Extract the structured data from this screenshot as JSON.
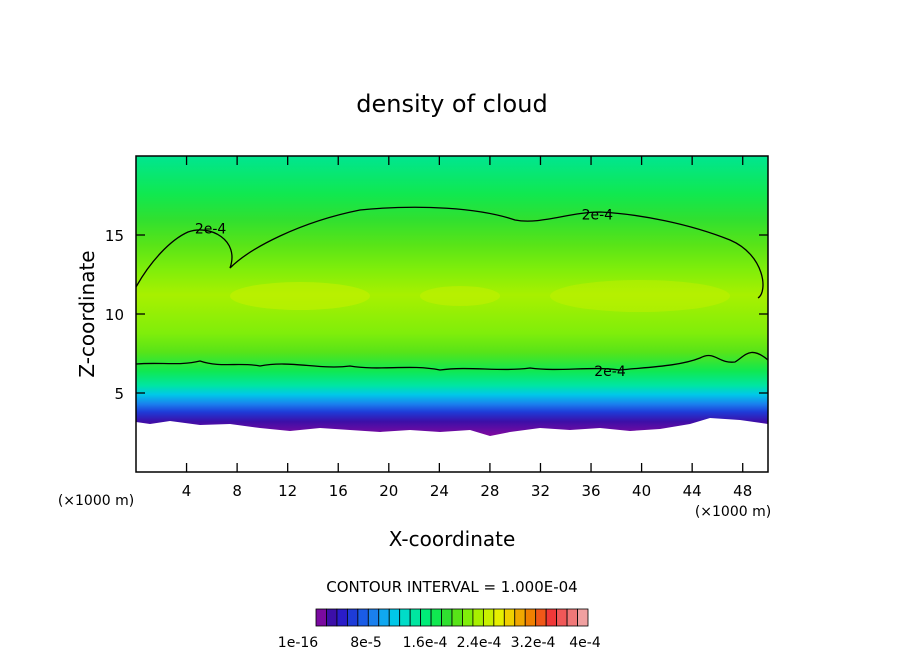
{
  "chart_data": {
    "type": "heatmap",
    "title": "density of cloud",
    "xlabel": "X-coordinate",
    "ylabel": "Z-coordinate",
    "x_unit_label": "(×1000 m)",
    "y_unit_label": "(×1000 m)",
    "xlim": [
      0,
      50
    ],
    "ylim": [
      0,
      20
    ],
    "x_ticks": [
      4,
      8,
      12,
      16,
      20,
      24,
      28,
      32,
      36,
      40,
      44,
      48
    ],
    "y_ticks": [
      5,
      10,
      15
    ],
    "contour_interval_text": "CONTOUR INTERVAL = 1.000E-04",
    "contour_label": "2e-4",
    "contour_label_positions": [
      [
        5.9,
        15.4
      ],
      [
        36.5,
        16.3
      ],
      [
        37.5,
        6.4
      ]
    ],
    "colorbar": {
      "labels": [
        "1e-16",
        "8e-5",
        "1.6e-4",
        "2.4e-4",
        "3.2e-4",
        "4e-4"
      ],
      "colors": [
        "#7a0aa0",
        "#3c0fa8",
        "#2a1cc8",
        "#1e3cd8",
        "#1a5ce6",
        "#1a80ee",
        "#10a8f0",
        "#00c8e8",
        "#00dcc8",
        "#00e6a0",
        "#00ec78",
        "#10e850",
        "#30e030",
        "#58e418",
        "#80ee0a",
        "#a8f000",
        "#c8f000",
        "#e6f000",
        "#f0d000",
        "#f0a800",
        "#f08000",
        "#f05818",
        "#f03838",
        "#f05858",
        "#f07878",
        "#f0a0a0"
      ]
    },
    "density_profile": {
      "z": [
        2.3,
        3.4,
        4.0,
        4.5,
        5.0,
        5.5,
        6.0,
        7.0,
        8.0,
        9.0,
        10.5,
        12.0,
        14.0,
        16.0,
        18.0,
        20.0
      ],
      "value": [
        1e-05,
        4e-05,
        8e-05,
        0.00012,
        0.00015,
        0.00018,
        0.0002,
        0.00022,
        0.000235,
        0.00025,
        0.00027,
        0.00027,
        0.00025,
        0.00022,
        0.0002,
        0.00018
      ]
    }
  }
}
